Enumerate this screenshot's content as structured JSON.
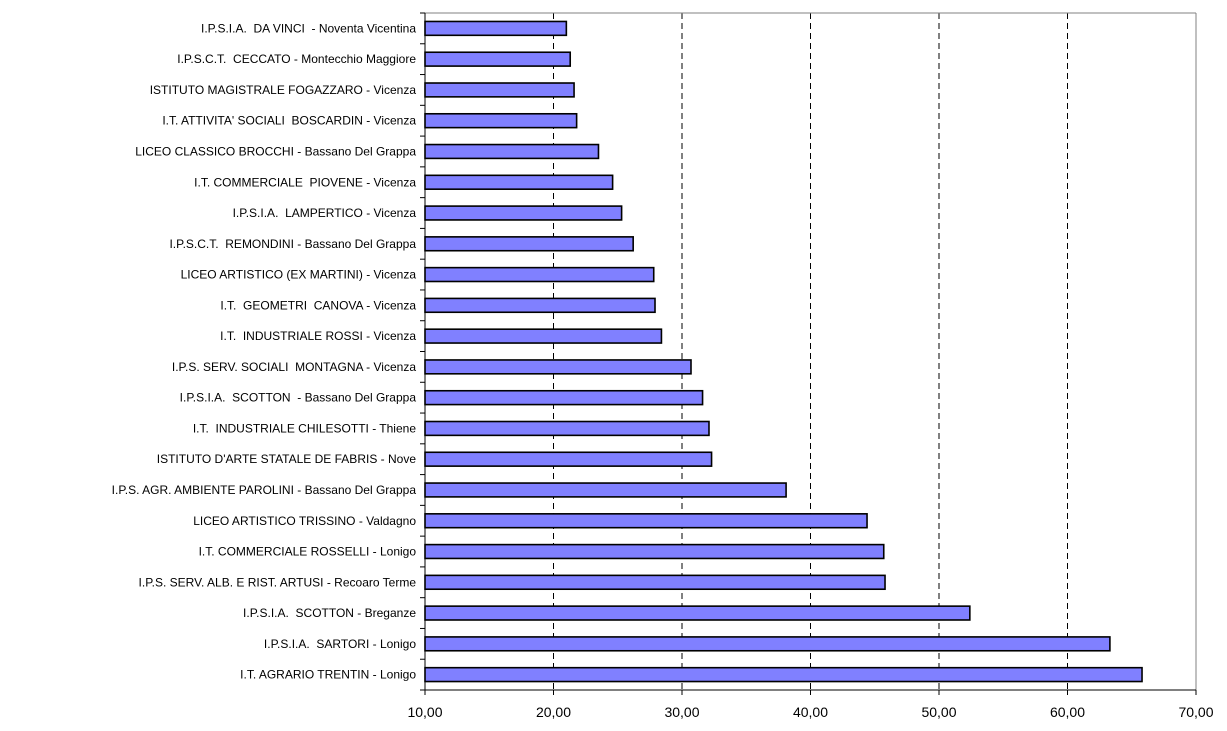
{
  "chart_data": {
    "type": "bar",
    "orientation": "horizontal",
    "title": "",
    "xlabel": "",
    "ylabel": "",
    "xlim": [
      10,
      70
    ],
    "xticks": [
      "10,00",
      "20,00",
      "30,00",
      "40,00",
      "50,00",
      "60,00",
      "70,00"
    ],
    "grid": "vertical-dashed",
    "legend": "none",
    "bar_color": "#8080ff",
    "categories": [
      "I.P.S.I.A.  DA VINCI  - Noventa Vicentina",
      "I.P.S.C.T.  CECCATO - Montecchio Maggiore",
      "ISTITUTO MAGISTRALE FOGAZZARO - Vicenza",
      "I.T. ATTIVITA' SOCIALI  BOSCARDIN - Vicenza",
      "LICEO CLASSICO BROCCHI - Bassano Del Grappa",
      "I.T. COMMERCIALE  PIOVENE - Vicenza",
      "I.P.S.I.A.  LAMPERTICO - Vicenza",
      "I.P.S.C.T.  REMONDINI - Bassano Del Grappa",
      "LICEO ARTISTICO (EX MARTINI) - Vicenza",
      "I.T.  GEOMETRI  CANOVA - Vicenza",
      "I.T.  INDUSTRIALE ROSSI - Vicenza",
      "I.P.S. SERV. SOCIALI  MONTAGNA - Vicenza",
      "I.P.S.I.A.  SCOTTON  - Bassano Del Grappa",
      "I.T.  INDUSTRIALE CHILESOTTI - Thiene",
      "ISTITUTO D'ARTE STATALE DE FABRIS - Nove",
      "I.P.S. AGR. AMBIENTE PAROLINI - Bassano Del Grappa",
      "LICEO ARTISTICO TRISSINO - Valdagno",
      "I.T. COMMERCIALE ROSSELLI - Lonigo",
      "I.P.S. SERV. ALB. E RIST. ARTUSI - Recoaro Terme",
      "I.P.S.I.A.  SCOTTON - Breganze",
      "I.P.S.I.A.  SARTORI - Lonigo",
      "I.T. AGRARIO TRENTIN - Lonigo"
    ],
    "values": [
      21.0,
      21.3,
      21.6,
      21.8,
      23.5,
      24.6,
      25.3,
      26.2,
      27.8,
      27.9,
      28.4,
      30.7,
      31.6,
      32.1,
      32.3,
      38.1,
      44.4,
      45.7,
      45.8,
      52.4,
      63.3,
      65.8
    ]
  }
}
